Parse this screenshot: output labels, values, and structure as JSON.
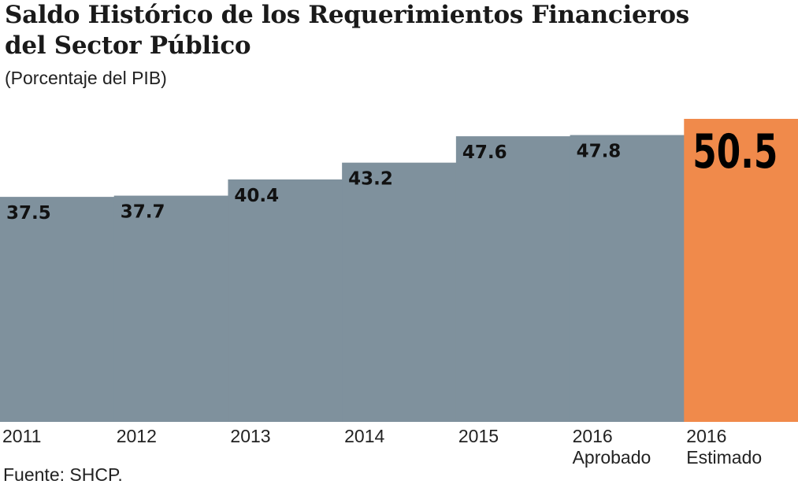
{
  "title_line1": "Saldo Histórico de los Requerimientos Financieros",
  "title_line2": "del Sector Público",
  "subtitle": "(Porcentaje del PIB)",
  "source": "Fuente: SHCP.",
  "colors": {
    "bar": "#7f919d",
    "highlight": "#f08a4b",
    "label": "#111111",
    "highlight_label": "#000000"
  },
  "chart_data": {
    "type": "bar",
    "categories": [
      [
        "2011"
      ],
      [
        "2012"
      ],
      [
        "2013"
      ],
      [
        "2014"
      ],
      [
        "2015"
      ],
      [
        "2016",
        "Aprobado"
      ],
      [
        "2016",
        "Estimado"
      ]
    ],
    "values": [
      37.5,
      37.7,
      40.4,
      43.2,
      47.6,
      47.8,
      50.5
    ],
    "value_labels": [
      "37.5",
      "37.7",
      "40.4",
      "43.2",
      "47.6",
      "47.8",
      "50.5"
    ],
    "highlight_index": 6,
    "ylim": [
      0,
      50.5
    ],
    "grid": false,
    "legend": "none"
  }
}
